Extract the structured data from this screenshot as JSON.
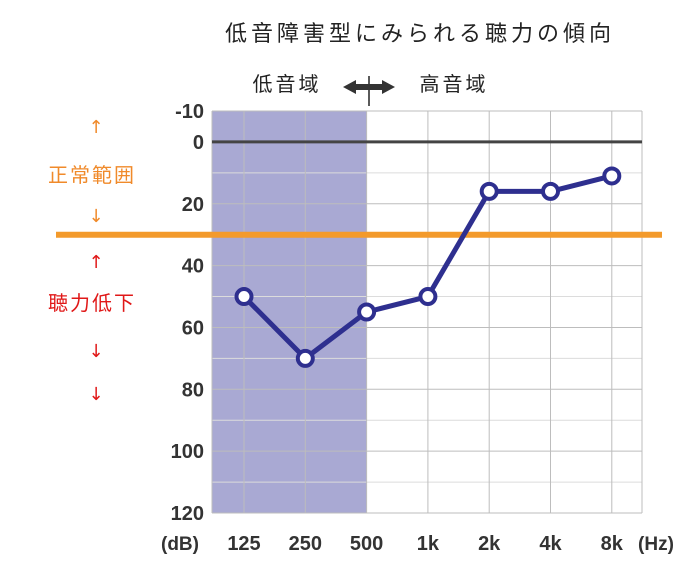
{
  "chart_data": {
    "type": "line",
    "title": "低音障害型にみられる聴力の傾向",
    "y_unit": "(dB)",
    "x_unit": "(Hz)",
    "categories": [
      "125",
      "250",
      "500",
      "1k",
      "2k",
      "4k",
      "8k"
    ],
    "y_ticks": [
      "-10",
      "0",
      "20",
      "40",
      "60",
      "80",
      "100",
      "120"
    ],
    "ylim": [
      -10,
      120
    ],
    "y_inverted": true,
    "series": [
      {
        "values": [
          50,
          70,
          55,
          50,
          16,
          16,
          11
        ],
        "color": "#2e2f8f"
      }
    ],
    "low_band": {
      "label": "低音域",
      "from": "125",
      "to": "500",
      "color": "#a9a9d3"
    },
    "high_band_label": "高音域",
    "threshold_line": {
      "value": 30,
      "color": "#f39a2b"
    },
    "zero_line": {
      "value": 0,
      "color": "#444444"
    },
    "side_labels": {
      "normal": {
        "text": "正常範囲",
        "color": "#f08a2a",
        "arrow": "↑",
        "arrow_down": "↓"
      },
      "loss": {
        "text": "聴力低下",
        "color": "#e01818",
        "arrow": "↑",
        "arrow_down": "↓"
      }
    },
    "grid": true
  }
}
